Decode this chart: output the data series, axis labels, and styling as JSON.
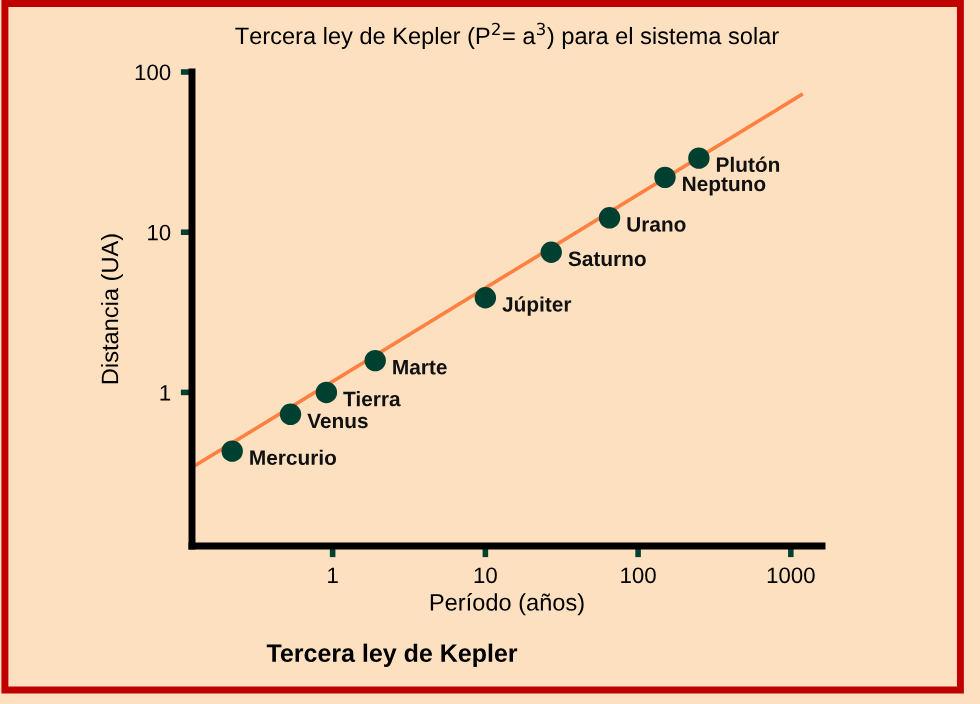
{
  "chart_data": {
    "type": "scatter",
    "title": "Tercera ley de Kepler (P$^{2}$= a$^{3}$) para el sistema solar",
    "xlabel": "Período (años)",
    "ylabel": "Distancia (UA)",
    "log": "xy",
    "grid": false,
    "legend": false,
    "marker": "circle",
    "xlim": [
      0.12,
      1600
    ],
    "ylim": [
      0.11,
      100
    ],
    "xticks": [
      1,
      10,
      100,
      1000
    ],
    "yticks": [
      1,
      10,
      100
    ],
    "series": [
      {
        "type": "line",
        "color": "#ff8040",
        "marker": "none",
        "line_style": "solid",
        "x": [
          0.12,
          1170
        ],
        "values": [
          0.34,
          72
        ]
      },
      {
        "color": "#004030",
        "x": [
          0.22,
          0.53,
          0.91,
          1.9,
          10,
          27,
          65,
          150,
          250
        ],
        "values": [
          0.43,
          0.73,
          1,
          1.58,
          3.9,
          7.5,
          12.3,
          22,
          29
        ]
      }
    ],
    "annotations": [
      {
        "text": "Mercurio",
        "x": 0.22,
        "y": 0.43
      },
      {
        "text": "Venus",
        "x": 0.53,
        "y": 0.73
      },
      {
        "text": "Tierra",
        "x": 0.91,
        "y": 1
      },
      {
        "text": "Marte",
        "x": 1.9,
        "y": 1.58
      },
      {
        "text": "Júpiter",
        "x": 10,
        "y": 3.9
      },
      {
        "text": "Saturno",
        "x": 27,
        "y": 7.5
      },
      {
        "text": "Urano",
        "x": 65,
        "y": 12.3
      },
      {
        "text": "Neptuno",
        "x": 150,
        "y": 22
      },
      {
        "text": "Plutón",
        "x": 250,
        "y": 29
      },
      "Tercera ley de Kepler"
    ]
  }
}
